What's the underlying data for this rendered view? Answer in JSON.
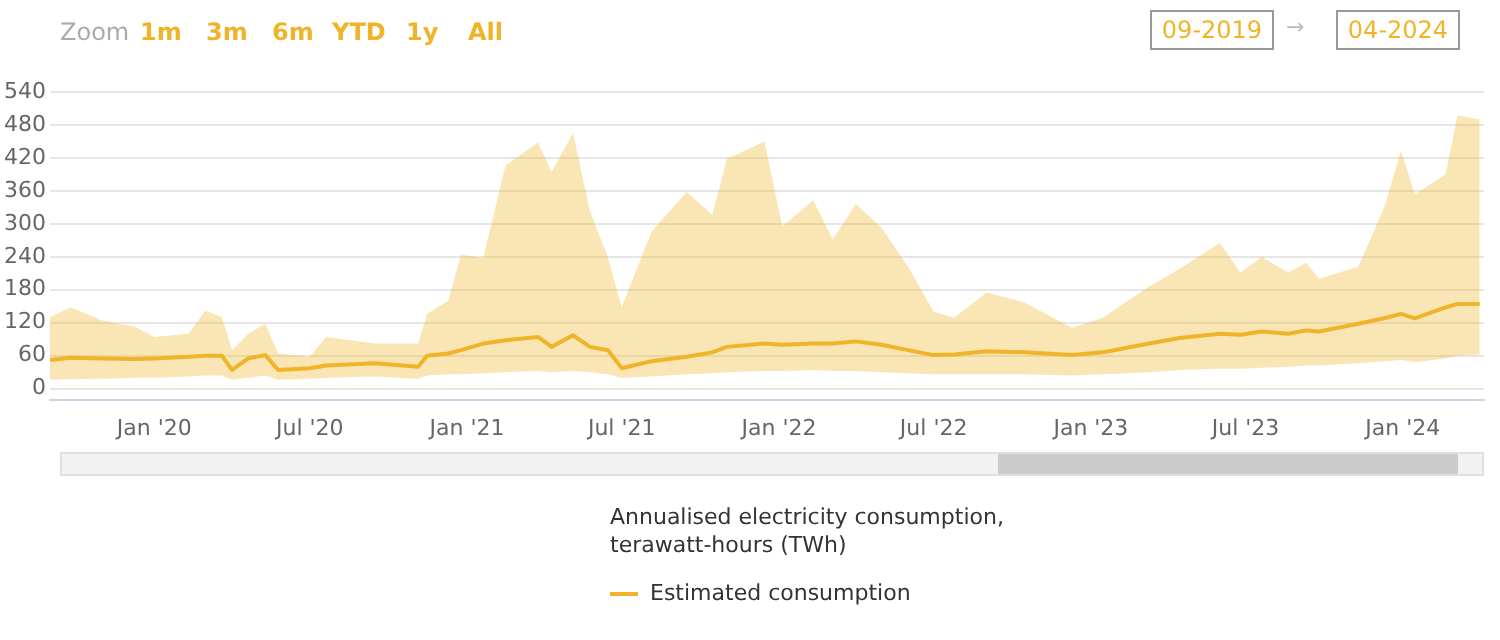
{
  "chart_data": {
    "type": "line",
    "legend_title": "Annualised electricity consumption, terawatt-hours (TWh)",
    "annotations": [
      "Zoom",
      "1m",
      "3m",
      "6m",
      "YTD",
      "1y",
      "All",
      "09-2019",
      "→",
      "04-2024"
    ],
    "x": [
      "2019-09-01",
      "2019-09-25",
      "2019-11-01",
      "2019-12-10",
      "2020-01-01",
      "2020-02-10",
      "2020-03-01",
      "2020-03-20",
      "2020-04-01",
      "2020-04-20",
      "2020-05-10",
      "2020-05-25",
      "2020-07-01",
      "2020-07-20",
      "2020-09-15",
      "2020-11-05",
      "2020-11-15",
      "2020-12-10",
      "2020-12-25",
      "2021-01-20",
      "2021-02-15",
      "2021-03-25",
      "2021-04-10",
      "2021-05-05",
      "2021-05-25",
      "2021-06-15",
      "2021-07-01",
      "2021-08-05",
      "2021-09-15",
      "2021-10-15",
      "2021-11-01",
      "2021-12-15",
      "2022-01-05",
      "2022-02-10",
      "2022-03-05",
      "2022-04-01",
      "2022-05-01",
      "2022-06-01",
      "2022-07-01",
      "2022-07-25",
      "2022-09-01",
      "2022-10-15",
      "2022-12-10",
      "2023-01-15",
      "2023-03-10",
      "2023-04-15",
      "2023-06-01",
      "2023-06-25",
      "2023-07-20",
      "2023-08-20",
      "2023-09-10",
      "2023-09-25",
      "2023-11-10",
      "2023-12-10",
      "2023-12-30",
      "2024-01-15",
      "2024-02-20",
      "2024-03-05",
      "2024-03-31"
    ],
    "series": [
      {
        "name": "Estimated consumption",
        "color": "#f0b429",
        "values": [
          52,
          56,
          55,
          54,
          55,
          58,
          60,
          60,
          34,
          55,
          61,
          34,
          37,
          42,
          46,
          40,
          60,
          64,
          70,
          82,
          88,
          94,
          76,
          97,
          76,
          70,
          37,
          50,
          58,
          66,
          76,
          82,
          80,
          82,
          82,
          86,
          80,
          70,
          61,
          62,
          68,
          66,
          61,
          66,
          82,
          92,
          100,
          98,
          104,
          100,
          106,
          104,
          118,
          128,
          136,
          128,
          148,
          154,
          154
        ],
        "lower": [
          16,
          17,
          18,
          20,
          20,
          22,
          24,
          24,
          16,
          20,
          24,
          16,
          18,
          20,
          22,
          18,
          24,
          26,
          26,
          28,
          30,
          32,
          30,
          32,
          30,
          26,
          20,
          22,
          26,
          28,
          30,
          32,
          32,
          34,
          32,
          32,
          30,
          28,
          26,
          26,
          26,
          26,
          24,
          26,
          30,
          34,
          36,
          36,
          38,
          40,
          42,
          42,
          46,
          50,
          52,
          48,
          55,
          60,
          62
        ],
        "upper": [
          130,
          148,
          124,
          112,
          94,
          100,
          142,
          130,
          70,
          100,
          118,
          64,
          58,
          94,
          82,
          82,
          136,
          160,
          244,
          238,
          406,
          448,
          394,
          466,
          322,
          238,
          148,
          286,
          358,
          316,
          418,
          450,
          295,
          343,
          272,
          336,
          293,
          222,
          140,
          129,
          175,
          157,
          111,
          129,
          186,
          218,
          265,
          211,
          240,
          211,
          229,
          200,
          222,
          329,
          433,
          354,
          390,
          497,
          490
        ]
      }
    ],
    "xlim": [
      "2019-09-01",
      "2024-04-05"
    ],
    "xticks": [
      {
        "value": "2020-01-01",
        "label": "Jan '20"
      },
      {
        "value": "2020-07-01",
        "label": "Jul '20"
      },
      {
        "value": "2021-01-01",
        "label": "Jan '21"
      },
      {
        "value": "2021-07-01",
        "label": "Jul '21"
      },
      {
        "value": "2022-01-01",
        "label": "Jan '22"
      },
      {
        "value": "2022-07-01",
        "label": "Jul '22"
      },
      {
        "value": "2023-01-01",
        "label": "Jan '23"
      },
      {
        "value": "2023-07-01",
        "label": "Jul '23"
      },
      {
        "value": "2024-01-01",
        "label": "Jan '24"
      }
    ],
    "ylim": [
      -20,
      540
    ],
    "yticks": [
      0,
      60,
      120,
      180,
      240,
      300,
      360,
      420,
      480,
      540
    ],
    "grid": "y",
    "legend": "bottom",
    "marker": "none",
    "line_style": "solid"
  }
}
